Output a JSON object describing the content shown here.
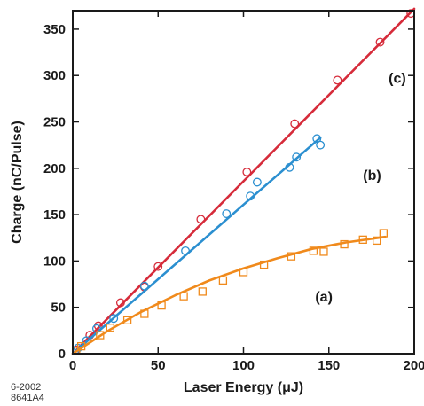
{
  "chart_data": {
    "type": "scatter",
    "xlabel": "Laser Energy (μJ)",
    "ylabel": "Charge  (nC/Pulse)",
    "xlim": [
      0,
      200
    ],
    "ylim": [
      0,
      370
    ],
    "xticks": [
      0,
      50,
      100,
      150,
      200
    ],
    "yticks": [
      0,
      50,
      100,
      150,
      200,
      250,
      300,
      350
    ],
    "grid": false,
    "series": [
      {
        "name": "(a)",
        "color": "#d62b3a",
        "marker": "circle",
        "points": [
          [
            2,
            4
          ],
          [
            10,
            20
          ],
          [
            15,
            30
          ],
          [
            28,
            55
          ],
          [
            42,
            72
          ],
          [
            50,
            94
          ],
          [
            75,
            145
          ],
          [
            102,
            196
          ],
          [
            130,
            248
          ],
          [
            155,
            295
          ],
          [
            180,
            336
          ],
          [
            198,
            367
          ]
        ],
        "fit": [
          [
            0,
            0
          ],
          [
            200,
            372
          ]
        ]
      },
      {
        "name": "(b)",
        "color": "#2b8fd0",
        "marker": "circle",
        "points": [
          [
            3,
            6
          ],
          [
            8,
            14
          ],
          [
            14,
            27
          ],
          [
            24,
            38
          ],
          [
            42,
            73
          ],
          [
            66,
            111
          ],
          [
            90,
            151
          ],
          [
            104,
            170
          ],
          [
            108,
            185
          ],
          [
            127,
            201
          ],
          [
            131,
            212
          ],
          [
            143,
            232
          ],
          [
            145,
            225
          ]
        ],
        "fit": [
          [
            0,
            0
          ],
          [
            145,
            233
          ]
        ]
      },
      {
        "name": "(c)",
        "color": "#f08a1c",
        "marker": "square",
        "points": [
          [
            2,
            3
          ],
          [
            5,
            8
          ],
          [
            16,
            20
          ],
          [
            22,
            28
          ],
          [
            32,
            36
          ],
          [
            42,
            43
          ],
          [
            52,
            52
          ],
          [
            65,
            62
          ],
          [
            76,
            67
          ],
          [
            88,
            79
          ],
          [
            100,
            88
          ],
          [
            112,
            96
          ],
          [
            128,
            105
          ],
          [
            141,
            111
          ],
          [
            147,
            110
          ],
          [
            159,
            118
          ],
          [
            170,
            123
          ],
          [
            178,
            122
          ],
          [
            182,
            130
          ]
        ],
        "fit": [
          [
            0,
            0
          ],
          [
            20,
            24
          ],
          [
            40,
            45
          ],
          [
            60,
            63
          ],
          [
            80,
            79
          ],
          [
            100,
            92
          ],
          [
            120,
            103
          ],
          [
            140,
            113
          ],
          [
            160,
            120
          ],
          [
            183,
            126
          ]
        ]
      }
    ]
  },
  "footer": {
    "line1": "6-2002",
    "line2": "8641A4"
  }
}
